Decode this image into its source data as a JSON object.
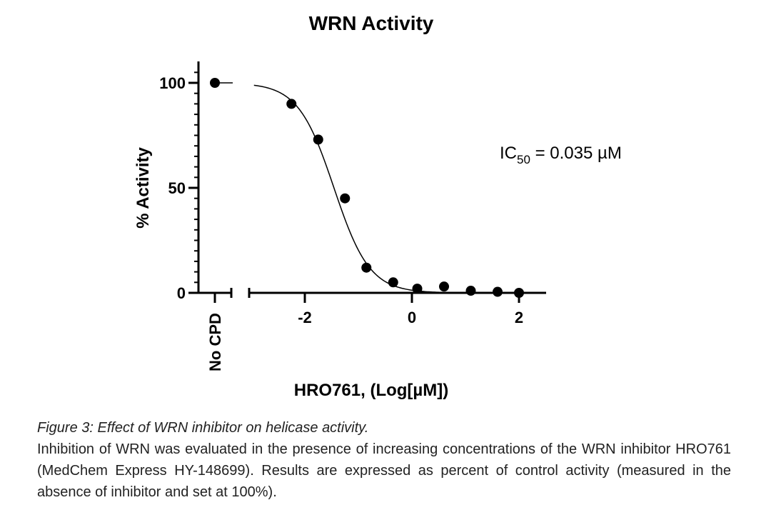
{
  "chart_data": {
    "type": "scatter",
    "title": "WRN Activity",
    "xlabel": "HRO761, (Log[µM])",
    "ylabel": "% Activity",
    "xlim": [
      -3,
      2.5
    ],
    "ylim": [
      0,
      105
    ],
    "x_ticks": [
      -2,
      0,
      2
    ],
    "x_tick_labels": [
      "-2",
      "0",
      "2"
    ],
    "y_ticks": [
      0,
      50,
      100
    ],
    "y_tick_labels": [
      "0",
      "50",
      "100"
    ],
    "control_label": "No CPD",
    "control_value": 100,
    "series": [
      {
        "name": "HRO761",
        "x": [
          -2.25,
          -1.75,
          -1.25,
          -0.85,
          -0.35,
          0.1,
          0.6,
          1.1,
          1.6,
          2.0
        ],
        "y": [
          90,
          73,
          45,
          12,
          5,
          2,
          3,
          1,
          0.5,
          0
        ]
      }
    ],
    "fit": {
      "type": "sigmoid",
      "top": 100,
      "bottom": 0,
      "log_ic50": -1.456,
      "hill_slope": 1.3
    },
    "annotation": {
      "prefix": "IC",
      "subscript": "50",
      "suffix": " = 0.035 µM"
    }
  },
  "caption": {
    "title": "Figure 3: Effect of WRN inhibitor on helicase activity.",
    "body": "Inhibition of WRN was evaluated in the presence of increasing concentrations of the WRN inhibitor HRO761 (MedChem Express HY-148699). Results are expressed as percent of control activity (measured in the absence of inhibitor and set at 100%)."
  }
}
